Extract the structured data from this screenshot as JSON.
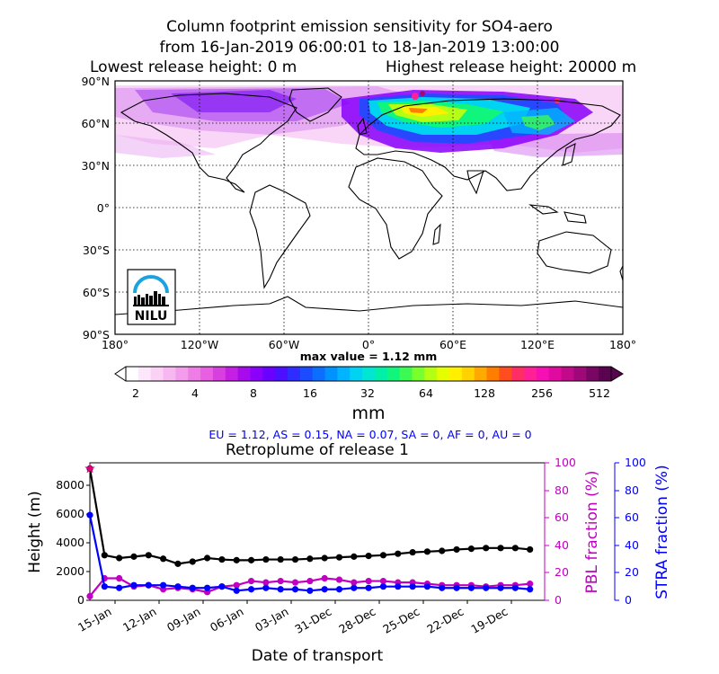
{
  "header": {
    "title_line1": "Column footprint emission sensitivity for SO4-aero",
    "title_line2": "from 16-Jan-2019 06:00:01 to 18-Jan-2019 13:00:00",
    "title_line3a": "Lowest release height: 0 m",
    "title_line3b": "Highest release height: 20000 m"
  },
  "map": {
    "lat_labels": [
      "90°N",
      "60°N",
      "30°N",
      "0°",
      "30°S",
      "60°S",
      "90°S"
    ],
    "lon_labels": [
      "180°",
      "120°W",
      "60°W",
      "0°",
      "60°E",
      "120°E",
      "180°"
    ],
    "max_value_label": "max value = 1.12 mm",
    "logo_text": "NILU"
  },
  "colorbar": {
    "ticks": [
      "2",
      "4",
      "8",
      "16",
      "32",
      "64",
      "128",
      "256",
      "512"
    ],
    "unit_label": "mm",
    "colors": [
      "#ffffff",
      "#fde7fb",
      "#fbd2f6",
      "#f7b8f1",
      "#f39cec",
      "#ee7ee6",
      "#e85fe1",
      "#d93fe0",
      "#c41fe3",
      "#a80aee",
      "#8a00fa",
      "#6a00ff",
      "#4b10ff",
      "#2f2cff",
      "#1c4cff",
      "#0b6eff",
      "#0092ff",
      "#00b4ff",
      "#00d2f2",
      "#00e6d2",
      "#00f0a8",
      "#10f57c",
      "#3cfa52",
      "#78ff2e",
      "#b4ff14",
      "#e6ff00",
      "#fff000",
      "#ffd200",
      "#ffaa00",
      "#ff7e00",
      "#ff4d1f",
      "#ff2d66",
      "#ff1f96",
      "#f510b4",
      "#e00aa0",
      "#c10a8a",
      "#9e0878",
      "#7a0664",
      "#5a0450"
    ]
  },
  "regions_line": "EU = 1.12,  AS = 0.15,  NA = 0.07,  SA = 0,  AF = 0,  AU = 0",
  "chart_data": {
    "type": "line",
    "title": "Retroplume of release 1",
    "xlabel": "Date of transport",
    "ylabel_left": "Height (m)",
    "ylabel_right1": "PBL fraction (%)",
    "ylabel_right2": "STRA fraction (%)",
    "x_tick_labels": [
      "15-Jan",
      "12-Jan",
      "09-Jan",
      "06-Jan",
      "03-Jan",
      "31-Dec",
      "28-Dec",
      "25-Dec",
      "22-Dec",
      "19-Dec"
    ],
    "y_left_ticks": [
      "0",
      "2000",
      "4000",
      "6000",
      "8000"
    ],
    "y_right_ticks": [
      "0",
      "20",
      "40",
      "60",
      "80",
      "100"
    ],
    "ylim_left": [
      0,
      9600
    ],
    "ylim_right": [
      0,
      100
    ],
    "x_days_before_release": [
      0,
      1,
      2,
      3,
      4,
      5,
      6,
      7,
      8,
      9,
      10,
      11,
      12,
      13,
      14,
      15,
      16,
      17,
      18,
      19,
      20,
      21,
      22,
      23,
      24,
      25,
      26,
      27,
      28,
      29,
      30
    ],
    "series": [
      {
        "name": "Height",
        "axis": "left",
        "color": "#000000",
        "values": [
          9200,
          3150,
          2950,
          3050,
          3150,
          2900,
          2550,
          2700,
          2950,
          2850,
          2800,
          2800,
          2850,
          2850,
          2850,
          2900,
          2950,
          3000,
          3050,
          3100,
          3150,
          3250,
          3350,
          3400,
          3450,
          3550,
          3600,
          3650,
          3650,
          3650,
          3550
        ]
      },
      {
        "name": "PBL fraction",
        "axis": "right1",
        "color": "#c000c0",
        "values": [
          3,
          16,
          16,
          10,
          11,
          8,
          9,
          8,
          6,
          10,
          11,
          14,
          13,
          14,
          13,
          14,
          16,
          15,
          13,
          14,
          14,
          13,
          13,
          12,
          11,
          11,
          11,
          10,
          11,
          11,
          12
        ]
      },
      {
        "name": "STRA fraction",
        "axis": "right2",
        "color": "#0000ff",
        "values": [
          62,
          10,
          9,
          11,
          11,
          11,
          10,
          9,
          9,
          10,
          7,
          8,
          9,
          8,
          8,
          7,
          8,
          8,
          9,
          9,
          10,
          10,
          10,
          10,
          9,
          9,
          9,
          9,
          9,
          9,
          8
        ]
      }
    ],
    "release_marker": {
      "height": 9200,
      "color": "#e0007f"
    }
  }
}
